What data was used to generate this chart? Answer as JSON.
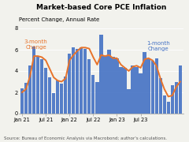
{
  "title": "Market-based Core PCE Inflation",
  "subtitle": "Percent Change, Annual Rate",
  "source": "Source: Bureau of Economic Analysis via Macrobond; author's calculations.",
  "bar_color": "#4472C4",
  "line_color": "#E8732A",
  "bar_label": "1-month\nChange",
  "line_label": "3-month\nChange",
  "ylim": [
    0,
    8
  ],
  "yticks": [
    0,
    2,
    4,
    6,
    8
  ],
  "months_1m": [
    2.4,
    2.9,
    4.5,
    6.3,
    5.3,
    5.1,
    4.3,
    3.4,
    1.9,
    3.1,
    2.8,
    3.5,
    5.6,
    6.2,
    6.1,
    6.2,
    6.1,
    5.1,
    3.6,
    3.0,
    7.4,
    5.4,
    6.0,
    5.3,
    5.2,
    4.4,
    4.3,
    2.3,
    4.5,
    4.4,
    3.8,
    5.8,
    5.1,
    5.0,
    5.2,
    3.3,
    1.7,
    1.1,
    2.7,
    3.0,
    4.5
  ],
  "months_3m": [
    2.0,
    2.3,
    3.5,
    5.4,
    5.4,
    5.3,
    5.0,
    4.2,
    3.4,
    3.1,
    3.0,
    3.3,
    5.0,
    5.5,
    5.9,
    6.2,
    6.2,
    6.1,
    5.3,
    4.6,
    5.5,
    5.4,
    5.5,
    5.2,
    5.2,
    4.6,
    4.3,
    4.0,
    4.4,
    4.5,
    4.3,
    5.1,
    5.2,
    5.0,
    4.5,
    3.3,
    2.3,
    1.6,
    1.7,
    2.5,
    3.0
  ],
  "x_tick_labels": [
    "Jan 21",
    "Jul 21",
    "Jan 22",
    "Jul 22",
    "Jan 23",
    "Jul 23"
  ],
  "x_tick_positions": [
    0,
    6,
    12,
    18,
    24,
    30
  ],
  "background_color": "#F2F2ED",
  "title_fontsize": 6.5,
  "subtitle_fontsize": 5.0,
  "source_fontsize": 4.0,
  "tick_fontsize": 4.8,
  "annotation_fontsize": 5.0
}
